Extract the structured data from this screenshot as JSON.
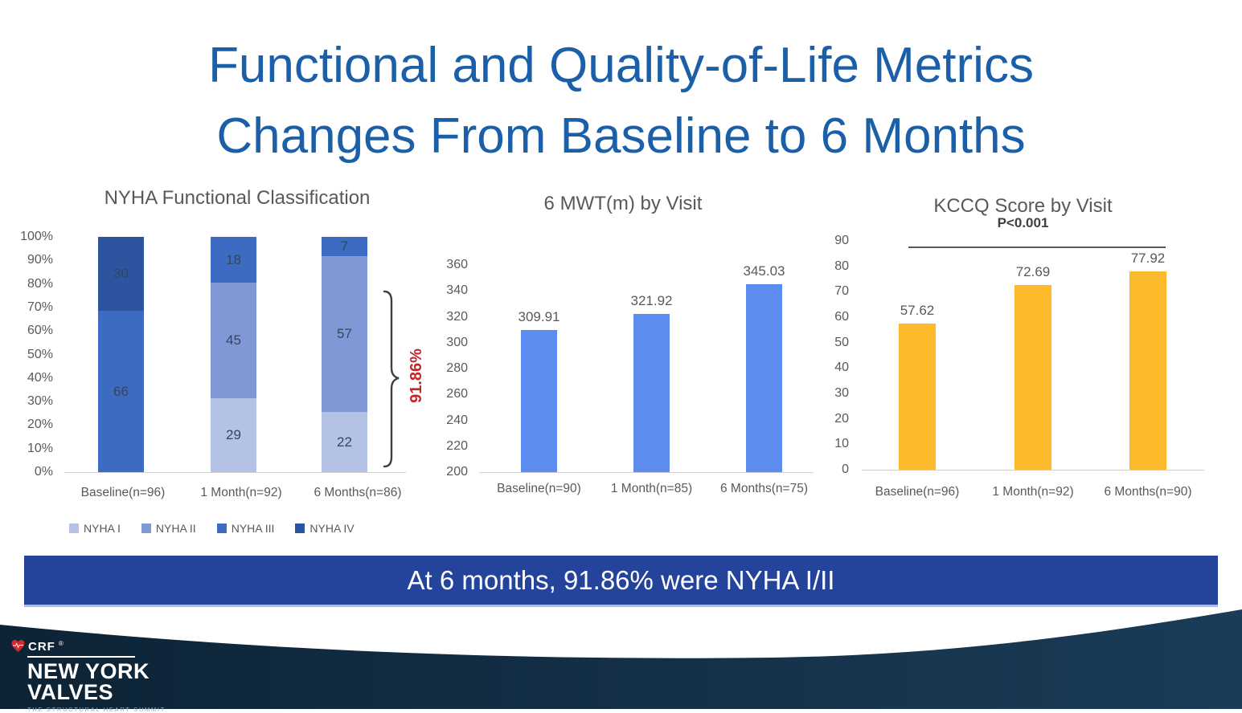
{
  "slide": {
    "title_line1": "Functional and Quality-of-Life Metrics",
    "title_line2": "Changes From Baseline to 6 Months",
    "banner_text": "At 6 months, 91.86% were NYHA I/II"
  },
  "colors": {
    "title_blue": "#1A5FA8",
    "banner_blue": "#24439B",
    "nyha_i": "#B3C2E5",
    "nyha_ii": "#8099D6",
    "nyha_iii": "#3D6BC2",
    "nyha_iv": "#2D549F",
    "mwt_bar_blue": "#5C8CEF",
    "kccq_bar_amber": "#FBBB2D",
    "annotation_red": "#C0272D",
    "footer_navy": "#122C44",
    "axis_text_gray": "#595959"
  },
  "chart_data": [
    {
      "type": "bar",
      "subtype": "stacked-100pct",
      "title": "NYHA Functional Classification",
      "categories": [
        "Baseline(n=96)",
        "1 Month(n=92)",
        "6 Months(n=86)"
      ],
      "totals": [
        96,
        92,
        86
      ],
      "series": [
        {
          "name": "NYHA I",
          "color": "#B3C2E5",
          "values": [
            0,
            29,
            22
          ]
        },
        {
          "name": "NYHA II",
          "color": "#8099D6",
          "values": [
            0,
            45,
            57
          ]
        },
        {
          "name": "NYHA III",
          "color": "#3D6BC2",
          "values": [
            66,
            18,
            7
          ]
        },
        {
          "name": "NYHA IV",
          "color": "#2D549F",
          "values": [
            30,
            0,
            0
          ]
        }
      ],
      "y_ticks": [
        "100%",
        "90%",
        "80%",
        "70%",
        "60%",
        "50%",
        "40%",
        "30%",
        "20%",
        "10%",
        "0%"
      ],
      "y_tick_values": [
        100,
        90,
        80,
        70,
        60,
        50,
        40,
        30,
        20,
        10,
        0
      ],
      "ylim": [
        0,
        100
      ],
      "annotation": "91.86%",
      "legend_position": "bottom",
      "grid": false
    },
    {
      "type": "bar",
      "title": "6 MWT(m) by Visit",
      "categories": [
        "Baseline(n=90)",
        "1 Month(n=85)",
        "6 Months(n=75)"
      ],
      "values": [
        309.91,
        321.92,
        345.03
      ],
      "data_labels": [
        "309.91",
        "321.92",
        "345.03"
      ],
      "bar_color": "#5C8CEF",
      "y_ticks": [
        "360",
        "340",
        "320",
        "300",
        "280",
        "260",
        "240",
        "220",
        "200"
      ],
      "y_tick_values": [
        360,
        340,
        320,
        300,
        280,
        260,
        240,
        220,
        200
      ],
      "ylim": [
        200,
        360
      ],
      "grid": false
    },
    {
      "type": "bar",
      "title": "KCCQ Score by Visit",
      "categories": [
        "Baseline(n=96)",
        "1 Month(n=92)",
        "6 Months(n=90)"
      ],
      "values": [
        57.62,
        72.69,
        77.92
      ],
      "data_labels": [
        "57.62",
        "72.69",
        "77.92"
      ],
      "bar_color": "#FBBB2D",
      "y_ticks": [
        "90",
        "80",
        "70",
        "60",
        "50",
        "40",
        "30",
        "20",
        "10",
        "0"
      ],
      "y_tick_values": [
        90,
        80,
        70,
        60,
        50,
        40,
        30,
        20,
        10,
        0
      ],
      "ylim": [
        0,
        90
      ],
      "annotation": "P<0.001",
      "grid": false
    }
  ],
  "footer": {
    "crf_label": "CRF",
    "registered_mark": "®",
    "brand_line1": "NEW YORK",
    "brand_line2": "VALVES",
    "tagline": "THE STRUCTURAL HEART SUMMIT"
  }
}
